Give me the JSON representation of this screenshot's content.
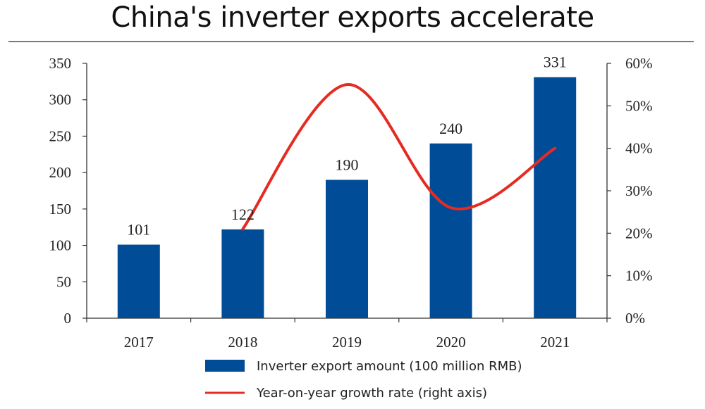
{
  "title": "China's inverter exports accelerate",
  "chart_data": {
    "type": "bar",
    "categories": [
      "2017",
      "2018",
      "2019",
      "2020",
      "2021"
    ],
    "series": [
      {
        "name": "Inverter export amount (100 million RMB)",
        "type": "bar",
        "axis": "left",
        "color": "#004c97",
        "values": [
          101,
          122,
          190,
          240,
          331
        ],
        "data_labels": [
          "101",
          "122",
          "190",
          "240",
          "331"
        ]
      },
      {
        "name": "Year-on-year growth rate (right axis)",
        "type": "line",
        "axis": "right",
        "color": "#e52b22",
        "values": [
          null,
          0.21,
          0.55,
          0.26,
          0.4
        ]
      }
    ],
    "y_left": {
      "range": [
        0,
        350
      ],
      "ticks": [
        "0",
        "50",
        "100",
        "150",
        "200",
        "250",
        "300",
        "350"
      ]
    },
    "y_right": {
      "range": [
        0,
        0.6
      ],
      "ticks": [
        "0%",
        "10%",
        "20%",
        "30%",
        "40%",
        "50%",
        "60%"
      ]
    },
    "legend_position": "bottom",
    "grid": false
  }
}
